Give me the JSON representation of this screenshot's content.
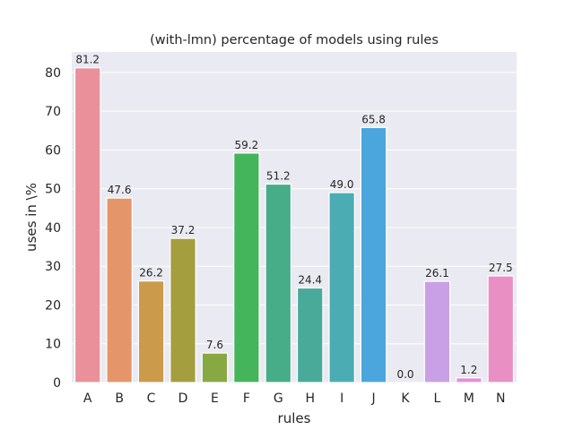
{
  "chart_data": {
    "type": "bar",
    "title": "(with-lmn) percentage of models using rules",
    "xlabel": "rules",
    "ylabel": "uses in \\%",
    "categories": [
      "A",
      "B",
      "C",
      "D",
      "E",
      "F",
      "G",
      "H",
      "I",
      "J",
      "K",
      "L",
      "M",
      "N"
    ],
    "values": [
      81.2,
      47.6,
      26.2,
      37.2,
      7.6,
      59.2,
      51.2,
      24.4,
      49.0,
      65.8,
      0.0,
      26.1,
      1.2,
      27.5
    ],
    "value_labels": [
      "81.2",
      "47.6",
      "26.2",
      "37.2",
      "7.6",
      "59.2",
      "51.2",
      "24.4",
      "49.0",
      "65.8",
      "0.0",
      "26.1",
      "1.2",
      "27.5"
    ],
    "colors": [
      "#ea909a",
      "#e5956a",
      "#cc9a4b",
      "#a59e3f",
      "#88a844",
      "#44b55a",
      "#46ad88",
      "#49aa9a",
      "#4bacb3",
      "#4ba6dd",
      "#91a8e8",
      "#c9a0e6",
      "#e38fdc",
      "#e98fc3"
    ],
    "yticks": [
      0,
      10,
      20,
      30,
      40,
      50,
      60,
      70,
      80
    ],
    "ylim": [
      0,
      85.3
    ],
    "grid": true,
    "legend": "none",
    "background_color": "#eaeaf2"
  }
}
